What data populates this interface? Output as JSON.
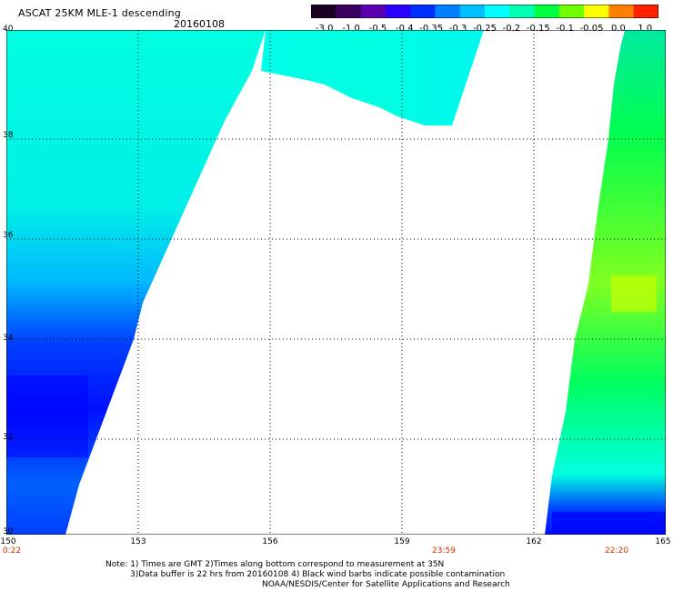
{
  "header": {
    "title": "ASCAT 25KM MLE-1 descending",
    "date": "20160108"
  },
  "colorbar": {
    "tick_labels": [
      "-3.0",
      "-1.0",
      "-0.5",
      "-0.4",
      "-0.35",
      "-0.3",
      "-0.25",
      "-0.2",
      "-0.15",
      "-0.1",
      "-0.05",
      "0.0",
      "1.0"
    ],
    "colors": [
      "#1a0022",
      "#3a0060",
      "#5a00b0",
      "#2a00ff",
      "#0030ff",
      "#0080ff",
      "#00c0ff",
      "#00ffff",
      "#00ffb0",
      "#00ff40",
      "#70ff00",
      "#ffff00",
      "#ff8000",
      "#ff2000"
    ]
  },
  "map": {
    "lat_labels": [
      "40",
      "38",
      "36",
      "34",
      "32",
      "30"
    ],
    "lon_labels": [
      "150",
      "153",
      "156",
      "159",
      "162",
      "165"
    ],
    "time_labels": [
      "0:22",
      "23:59",
      "22:20"
    ],
    "time_color": "#cc3300",
    "grid": true,
    "swaths": [
      "left-descending",
      "top-center",
      "right"
    ],
    "colormap": "MLE-1 residual"
  },
  "notes": {
    "line1": "Note: 1) Times are GMT 2)Times along bottom correspond to measurement at 35N",
    "line2": "3)Data buffer is 22 hrs from 20160108 4) Black wind barbs indicate possible contamination",
    "line3": "NOAA/NESDIS/Center for Satellite Applications and Research"
  }
}
